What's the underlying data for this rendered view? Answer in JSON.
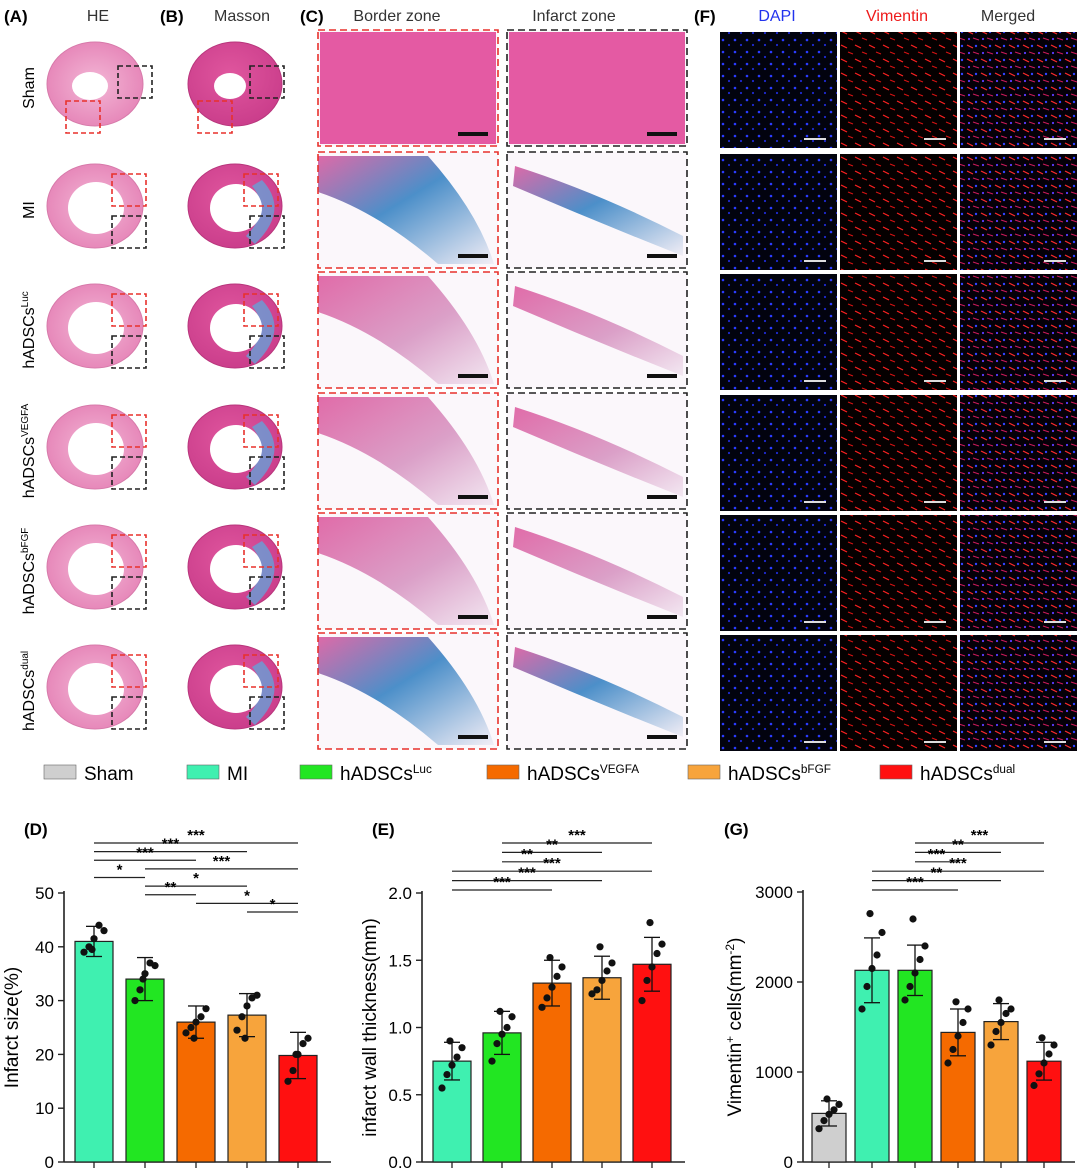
{
  "panels": {
    "a": {
      "label": "(A)",
      "title": "HE"
    },
    "b": {
      "label": "(B)",
      "title": "Masson"
    },
    "c": {
      "label": "(C)",
      "col1": "Border zone",
      "col2": "Infarct zone"
    },
    "f": {
      "label": "(F)",
      "col1": "DAPI",
      "col2": "Vimentin",
      "col3": "Merged"
    },
    "d": {
      "label": "(D)"
    },
    "e": {
      "label": "(E)"
    },
    "g": {
      "label": "(G)"
    }
  },
  "colors": {
    "sham": "#cfcfcf",
    "mi": "#3ff0b0",
    "luc": "#22e622",
    "vegfa": "#f56a00",
    "bfgf": "#f7a43c",
    "dual": "#ff1010",
    "tissue_pink": "#e884b8",
    "masson_blue": "#4a8cc8",
    "frame_red": "#e8312c",
    "frame_black": "#222222"
  },
  "groups": [
    {
      "id": "sham",
      "base": "Sham",
      "sup": ""
    },
    {
      "id": "mi",
      "base": "MI",
      "sup": ""
    },
    {
      "id": "luc",
      "base": "hADSCs",
      "sup": "Luc"
    },
    {
      "id": "vegfa",
      "base": "hADSCs",
      "sup": "VEGFA"
    },
    {
      "id": "bfgf",
      "base": "hADSCs",
      "sup": "bFGF"
    },
    {
      "id": "dual",
      "base": "hADSCs",
      "sup": "dual"
    }
  ],
  "legend": [
    {
      "id": "sham",
      "base": "Sham",
      "sup": ""
    },
    {
      "id": "mi",
      "base": "MI",
      "sup": ""
    },
    {
      "id": "luc",
      "base": "hADSCs",
      "sup": "Luc"
    },
    {
      "id": "vegfa",
      "base": "hADSCs",
      "sup": "VEGFA"
    },
    {
      "id": "bfgf",
      "base": "hADSCs",
      "sup": "bFGF"
    },
    {
      "id": "dual",
      "base": "hADSCs",
      "sup": "dual"
    }
  ],
  "chart_data": [
    {
      "panel": "D",
      "type": "bar",
      "ylabel": "Infarct size(%)",
      "ylim": [
        0,
        50
      ],
      "yticks": [
        0,
        10,
        20,
        30,
        40,
        50
      ],
      "bars": [
        {
          "group": "mi",
          "mean": 41,
          "sd": 2.8,
          "points": [
            39,
            40,
            41.5,
            44,
            43,
            39.5
          ]
        },
        {
          "group": "luc",
          "mean": 34,
          "sd": 4,
          "points": [
            30,
            32,
            35,
            37,
            36.5,
            34
          ]
        },
        {
          "group": "vegfa",
          "mean": 26,
          "sd": 3,
          "points": [
            24,
            25,
            26,
            27,
            28.5,
            23
          ]
        },
        {
          "group": "bfgf",
          "mean": 27.3,
          "sd": 4,
          "points": [
            24.5,
            27,
            29,
            30.5,
            31,
            23
          ]
        },
        {
          "group": "dual",
          "mean": 19.8,
          "sd": 4.3,
          "points": [
            15,
            17,
            20,
            22,
            23,
            20
          ]
        }
      ],
      "significance": [
        {
          "from": 0,
          "to": 4,
          "label": "***"
        },
        {
          "from": 0,
          "to": 3,
          "label": "***"
        },
        {
          "from": 0,
          "to": 2,
          "label": "***"
        },
        {
          "from": 1,
          "to": 4,
          "label": "***"
        },
        {
          "from": 0,
          "to": 1,
          "label": "*"
        },
        {
          "from": 1,
          "to": 3,
          "label": "*"
        },
        {
          "from": 1,
          "to": 2,
          "label": "**"
        },
        {
          "from": 2,
          "to": 4,
          "label": "*"
        },
        {
          "from": 3,
          "to": 4,
          "label": "*"
        }
      ]
    },
    {
      "panel": "E",
      "type": "bar",
      "ylabel": "infarct wall thickness(mm)",
      "ylim": [
        0,
        2.0
      ],
      "yticks": [
        "0.0",
        "0.5",
        "1.0",
        "1.5",
        "2.0"
      ],
      "bars": [
        {
          "group": "mi",
          "mean": 0.75,
          "sd": 0.14,
          "points": [
            0.55,
            0.65,
            0.72,
            0.78,
            0.85,
            0.9
          ]
        },
        {
          "group": "luc",
          "mean": 0.96,
          "sd": 0.16,
          "points": [
            0.75,
            0.88,
            0.95,
            1.0,
            1.08,
            1.12
          ]
        },
        {
          "group": "vegfa",
          "mean": 1.33,
          "sd": 0.17,
          "points": [
            1.15,
            1.22,
            1.3,
            1.38,
            1.45,
            1.52
          ]
        },
        {
          "group": "bfgf",
          "mean": 1.37,
          "sd": 0.16,
          "points": [
            1.25,
            1.28,
            1.35,
            1.42,
            1.48,
            1.6
          ]
        },
        {
          "group": "dual",
          "mean": 1.47,
          "sd": 0.2,
          "points": [
            1.2,
            1.35,
            1.45,
            1.55,
            1.62,
            1.78
          ]
        }
      ],
      "significance": [
        {
          "from": 1,
          "to": 4,
          "label": "***"
        },
        {
          "from": 1,
          "to": 3,
          "label": "**"
        },
        {
          "from": 1,
          "to": 2,
          "label": "**"
        },
        {
          "from": 0,
          "to": 4,
          "label": "***"
        },
        {
          "from": 0,
          "to": 3,
          "label": "***"
        },
        {
          "from": 0,
          "to": 2,
          "label": "***"
        }
      ]
    },
    {
      "panel": "G",
      "type": "bar",
      "ylabel_base": "Vimentin",
      "ylabel_sup": "+",
      "ylabel_rest": " cells(mm",
      "ylabel_unit_sup": "-2",
      "ylabel_end": ")",
      "ylim": [
        0,
        3000
      ],
      "yticks": [
        0,
        1000,
        2000,
        3000
      ],
      "bars": [
        {
          "group": "sham",
          "mean": 540,
          "sd": 140,
          "points": [
            370,
            460,
            530,
            580,
            640,
            700
          ]
        },
        {
          "group": "mi",
          "mean": 2130,
          "sd": 360,
          "points": [
            1700,
            1950,
            2150,
            2300,
            2550,
            2760
          ]
        },
        {
          "group": "luc",
          "mean": 2130,
          "sd": 280,
          "points": [
            1800,
            1950,
            2100,
            2250,
            2400,
            2700
          ]
        },
        {
          "group": "vegfa",
          "mean": 1440,
          "sd": 260,
          "points": [
            1100,
            1250,
            1400,
            1550,
            1700,
            1780
          ]
        },
        {
          "group": "bfgf",
          "mean": 1560,
          "sd": 200,
          "points": [
            1300,
            1450,
            1550,
            1650,
            1700,
            1800
          ]
        },
        {
          "group": "dual",
          "mean": 1120,
          "sd": 210,
          "points": [
            850,
            980,
            1100,
            1200,
            1300,
            1380
          ]
        }
      ],
      "significance": [
        {
          "from": 2,
          "to": 5,
          "label": "***"
        },
        {
          "from": 2,
          "to": 4,
          "label": "**"
        },
        {
          "from": 2,
          "to": 3,
          "label": "***"
        },
        {
          "from": 1,
          "to": 5,
          "label": "***"
        },
        {
          "from": 1,
          "to": 4,
          "label": "**"
        },
        {
          "from": 1,
          "to": 3,
          "label": "***"
        }
      ]
    }
  ]
}
